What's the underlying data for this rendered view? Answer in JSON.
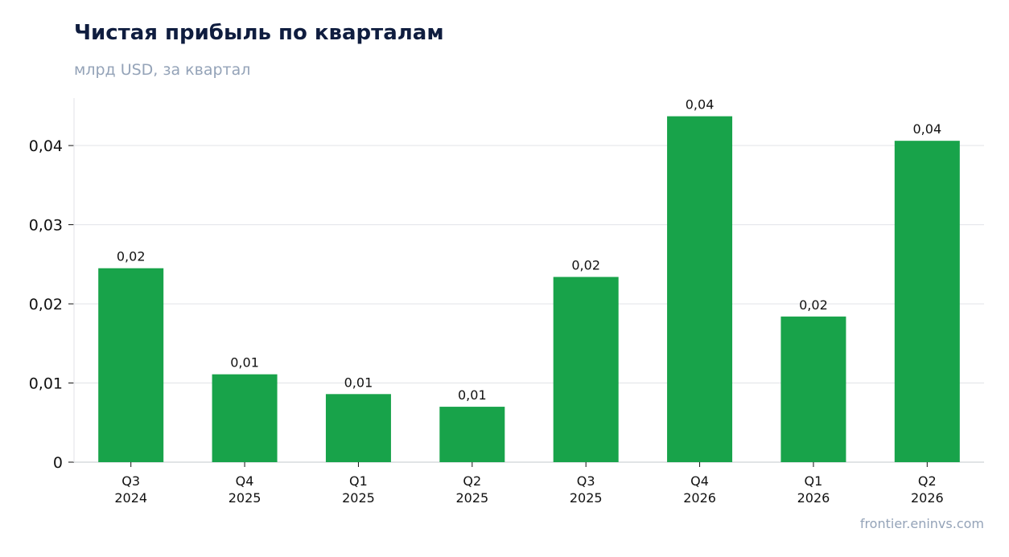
{
  "title": "Чистая прибыль по кварталам",
  "subtitle": "млрд USD, за квартал",
  "source": "frontier.eninvs.com",
  "colors": {
    "bar": "#18a34a",
    "title": "#0f1d3f",
    "muted": "#94a3b8",
    "grid": "#e5e7eb",
    "axis": "#cfd3d8",
    "text": "#111111"
  },
  "chart_data": {
    "type": "bar",
    "categories": [
      [
        "Q3",
        "2024"
      ],
      [
        "Q4",
        "2025"
      ],
      [
        "Q1",
        "2025"
      ],
      [
        "Q2",
        "2025"
      ],
      [
        "Q3",
        "2025"
      ],
      [
        "Q4",
        "2026"
      ],
      [
        "Q1",
        "2026"
      ],
      [
        "Q2",
        "2026"
      ]
    ],
    "values": [
      0.0245,
      0.0111,
      0.0086,
      0.007,
      0.0234,
      0.0437,
      0.0184,
      0.0406
    ],
    "data_labels": [
      "0,02",
      "0,01",
      "0,01",
      "0,01",
      "0,02",
      "0,04",
      "0,02",
      "0,04"
    ],
    "yticks": [
      0,
      0.01,
      0.02,
      0.03,
      0.04
    ],
    "ytick_labels": [
      "0",
      "0,01",
      "0,02",
      "0,03",
      "0,04"
    ],
    "ylim": [
      0,
      0.046
    ],
    "grid": true,
    "legend": false
  }
}
